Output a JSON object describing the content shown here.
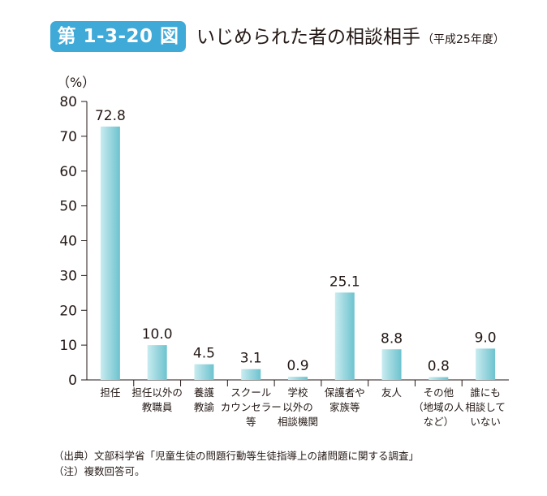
{
  "figure": {
    "number": "第 1-3-20 図",
    "title": "いじめられた者の相談相手",
    "subtitle": "（平成25年度）"
  },
  "chart_data": {
    "type": "bar",
    "unit_label": "（%）",
    "ylim": [
      0,
      80
    ],
    "yticks": [
      0,
      10,
      20,
      30,
      40,
      50,
      60,
      70,
      80
    ],
    "grid": false,
    "bar_color": "#9fd8e0",
    "categories": [
      [
        "担任"
      ],
      [
        "担任以外の",
        "教職員"
      ],
      [
        "養護",
        "教諭"
      ],
      [
        "スクール",
        "カウンセラー",
        "等"
      ],
      [
        "学校",
        "以外の",
        "相談機関"
      ],
      [
        "保護者や",
        "家族等"
      ],
      [
        "友人"
      ],
      [
        "その他",
        "（地域の人",
        "など）"
      ],
      [
        "誰にも",
        "相談して",
        "いない"
      ]
    ],
    "values": [
      72.8,
      10.0,
      4.5,
      3.1,
      0.9,
      25.1,
      8.8,
      0.8,
      9.0
    ],
    "value_labels": [
      "72.8",
      "10.0",
      "4.5",
      "3.1",
      "0.9",
      "25.1",
      "8.8",
      "0.8",
      "9.0"
    ]
  },
  "notes": {
    "source": "（出典）文部科学省「児童生徒の問題行動等生徒指導上の諸問題に関する調査」",
    "note": "（注）複数回答可。"
  }
}
